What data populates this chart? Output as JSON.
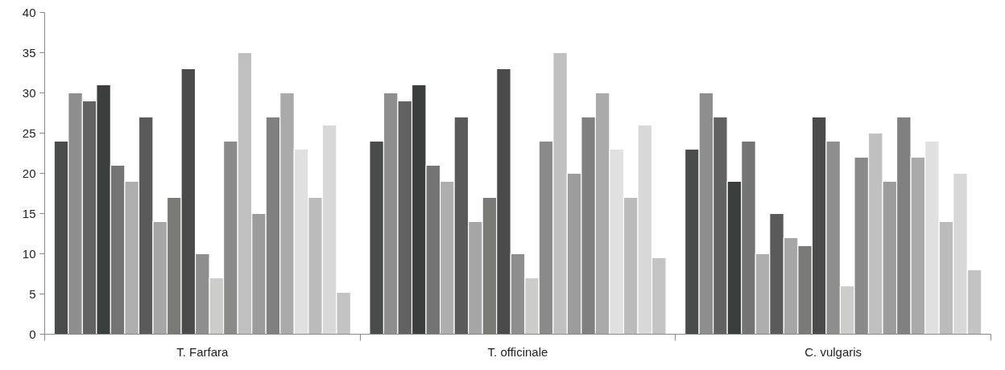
{
  "chart_data": {
    "type": "bar",
    "categories": [
      "T. Farfara",
      "T. officinale",
      "C. vulgaris"
    ],
    "ylim": [
      0,
      40
    ],
    "yticks": [
      0,
      5,
      10,
      15,
      20,
      25,
      30,
      35,
      40
    ],
    "grid": false,
    "series": [
      {
        "color": "#4a4c4b",
        "values": [
          24,
          24,
          23
        ]
      },
      {
        "color": "#8e8e8e",
        "values": [
          30,
          30,
          30
        ]
      },
      {
        "color": "#626262",
        "values": [
          29,
          29,
          27
        ]
      },
      {
        "color": "#3c3e3d",
        "values": [
          31,
          31,
          19
        ]
      },
      {
        "color": "#747474",
        "values": [
          21,
          21,
          24
        ]
      },
      {
        "color": "#aeaeae",
        "values": [
          19,
          19,
          10
        ]
      },
      {
        "color": "#5a5a5a",
        "values": [
          27,
          27,
          15
        ]
      },
      {
        "color": "#a6a6a6",
        "values": [
          14,
          14,
          12
        ]
      },
      {
        "color": "#7a7a78",
        "values": [
          17,
          17,
          11
        ]
      },
      {
        "color": "#4a4b4a",
        "values": [
          33,
          33,
          27
        ]
      },
      {
        "color": "#8e8e8e",
        "values": [
          10,
          10,
          24
        ]
      },
      {
        "color": "#cccccb",
        "values": [
          7,
          7,
          6
        ]
      },
      {
        "color": "#8a8a8a",
        "values": [
          24,
          24,
          22
        ]
      },
      {
        "color": "#c0c0c0",
        "values": [
          35,
          35,
          25
        ]
      },
      {
        "color": "#9c9c9c",
        "values": [
          15,
          20,
          19
        ]
      },
      {
        "color": "#808080",
        "values": [
          27,
          27,
          27
        ]
      },
      {
        "color": "#aaaaaa",
        "values": [
          30,
          30,
          22
        ]
      },
      {
        "color": "#e0e0e0",
        "values": [
          23,
          23,
          24
        ]
      },
      {
        "color": "#bbbbbb",
        "values": [
          17,
          17,
          14
        ]
      },
      {
        "color": "#d8d8d8",
        "values": [
          26,
          26,
          20
        ]
      },
      {
        "color": "#c2c3c2",
        "values": [
          5.2,
          9.5,
          8
        ]
      }
    ]
  }
}
